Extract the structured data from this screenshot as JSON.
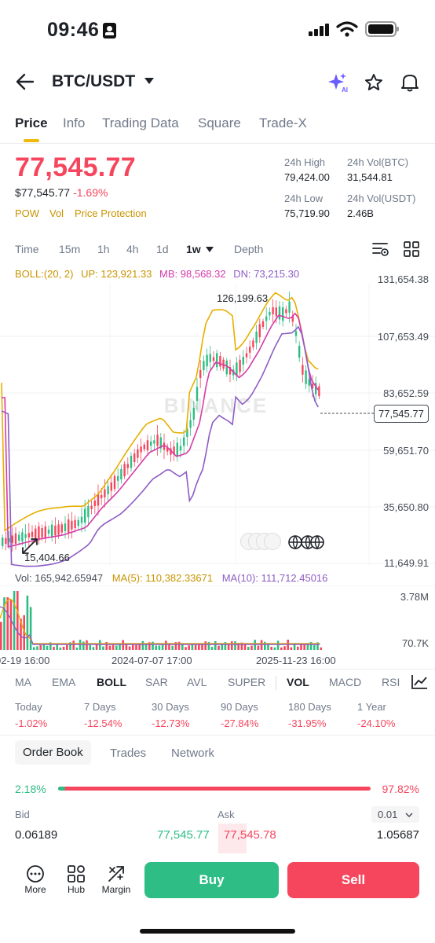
{
  "status_bar": {
    "time": "09:46"
  },
  "nav": {
    "pair": "BTC/USDT"
  },
  "tabs": [
    "Price",
    "Info",
    "Trading Data",
    "Square",
    "Trade-X"
  ],
  "price": {
    "last": "77,545.77",
    "usd": "$77,545.77",
    "change": "-1.69%",
    "tags": [
      "POW",
      "Vol",
      "Price Protection"
    ]
  },
  "stats": {
    "high_label": "24h High",
    "high": "79,424.00",
    "vol_btc_label": "24h Vol(BTC)",
    "vol_btc": "31,544.81",
    "low_label": "24h Low",
    "low": "75,719.90",
    "vol_usdt_label": "24h Vol(USDT)",
    "vol_usdt": "2.46B"
  },
  "timeframes": [
    "Time",
    "15m",
    "1h",
    "4h",
    "1d",
    "1w",
    "Depth"
  ],
  "boll": {
    "params": "BOLL:(20, 2)",
    "up": "UP: 123,921.33",
    "mb": "MB: 98,568.32",
    "dn": "DN: 73,215.30"
  },
  "price_axis": [
    "131,654.38",
    "107,653.49",
    "83,652.59",
    "59,651.70",
    "35,650.80",
    "11,649.91"
  ],
  "current_price_tag": "77,545.77",
  "chart_annotations": {
    "high": "126,199.63",
    "low": "15,404.66"
  },
  "watermark": "BINANCE",
  "volume": {
    "vol": "Vol: 165,942.65947",
    "ma5": "MA(5): 110,382.33671",
    "ma10": "MA(10): 111,712.45016",
    "axis_top": "3.78M",
    "axis_bottom": "70.7K"
  },
  "dates": [
    "02-19 16:00",
    "2024-07-07 17:00",
    "2025-11-23 16:00"
  ],
  "indicators": [
    "MA",
    "EMA",
    "BOLL",
    "SAR",
    "AVL",
    "SUPER",
    "VOL",
    "MACD",
    "RSI"
  ],
  "performance": [
    {
      "label": "Today",
      "value": "-1.02%"
    },
    {
      "label": "7 Days",
      "value": "-12.54%"
    },
    {
      "label": "30 Days",
      "value": "-12.73%"
    },
    {
      "label": "90 Days",
      "value": "-27.84%"
    },
    {
      "label": "180 Days",
      "value": "-31.95%"
    },
    {
      "label": "1 Year",
      "value": "-24.10%"
    }
  ],
  "order_book_tabs": [
    "Order Book",
    "Trades",
    "Network"
  ],
  "ratio": {
    "bid_pct": "2.18%",
    "ask_pct": "97.82%",
    "bid_fraction": 0.0218
  },
  "order_book": {
    "bid_label": "Bid",
    "ask_label": "Ask",
    "precision": "0.01",
    "rows": [
      {
        "bid_qty": "0.06189",
        "bid_price": "77,545.77",
        "ask_price": "77,545.78",
        "ask_qty": "1.05687"
      }
    ]
  },
  "bottom_nav": [
    "More",
    "Hub",
    "Margin"
  ],
  "actions": {
    "buy": "Buy",
    "sell": "Sell"
  },
  "colors": {
    "red": "#f6465d",
    "green": "#2ebd85",
    "yellow": "#f0b90b",
    "boll_up": "#e6b000",
    "boll_mb": "#d63aa9",
    "boll_dn": "#8e5cc4"
  }
}
